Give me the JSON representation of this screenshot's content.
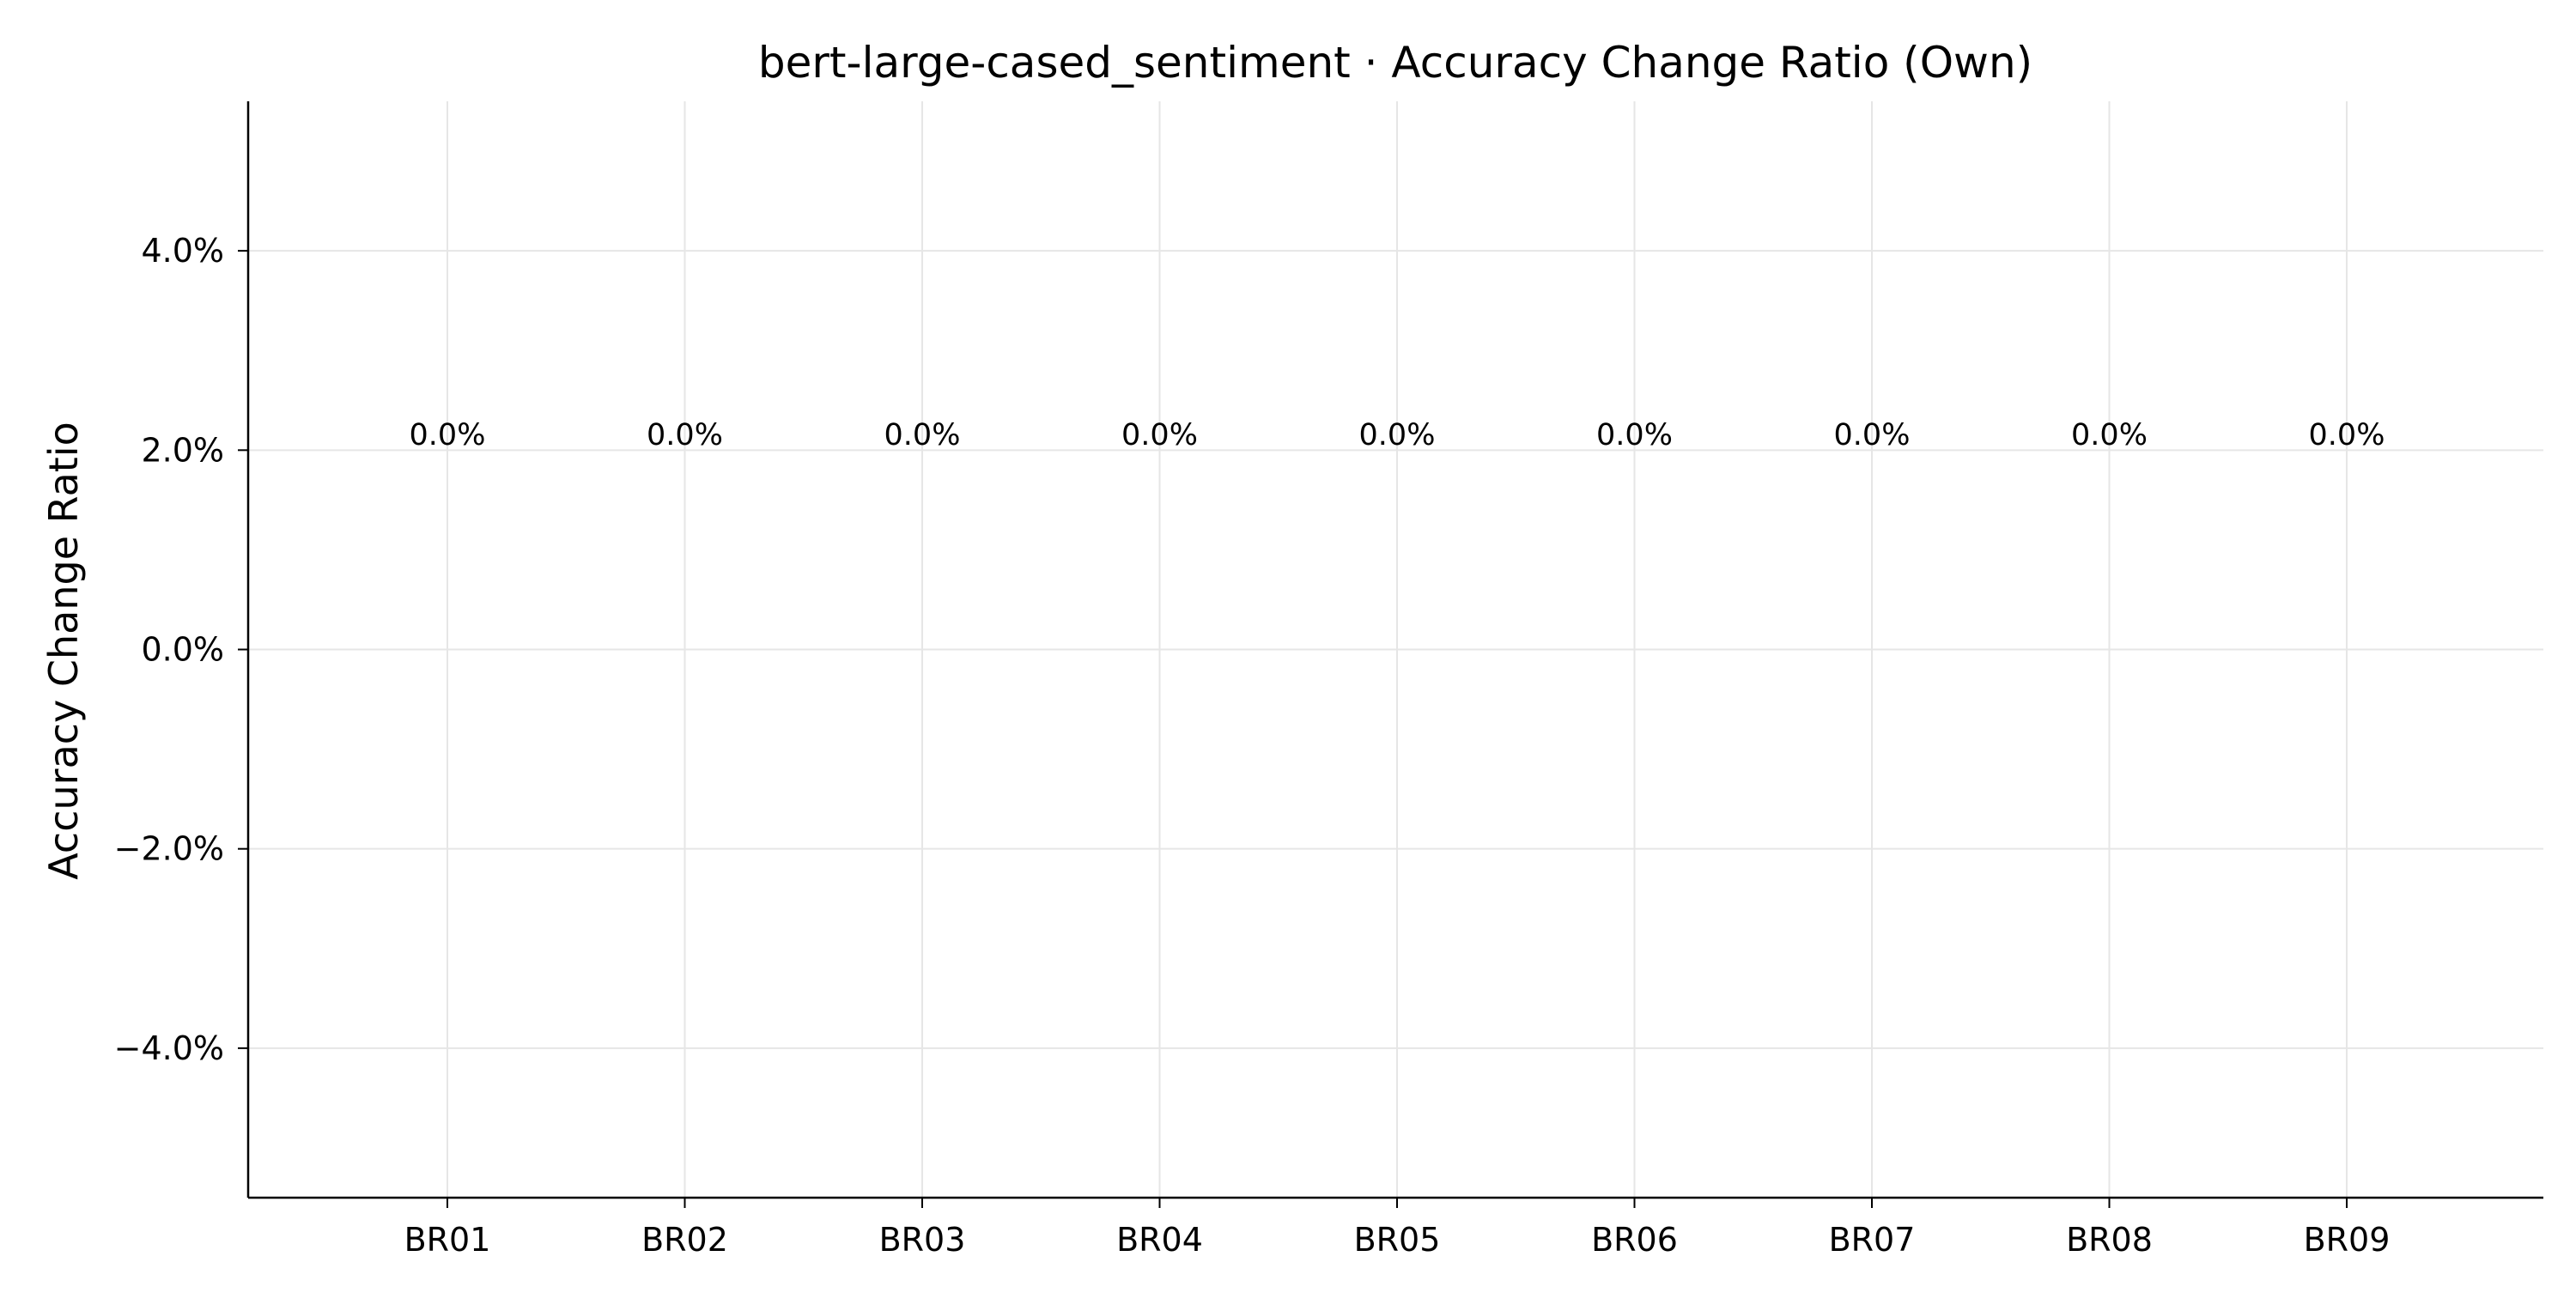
{
  "chart_data": {
    "type": "bar",
    "title": "bert-large-cased_sentiment · Accuracy Change Ratio (Own)",
    "xlabel": "",
    "ylabel": "Accuracy Change Ratio",
    "categories": [
      "BR01",
      "BR02",
      "BR03",
      "BR04",
      "BR05",
      "BR06",
      "BR07",
      "BR08",
      "BR09"
    ],
    "values": [
      0.0,
      0.0,
      0.0,
      0.0,
      0.0,
      0.0,
      0.0,
      0.0,
      0.0
    ],
    "data_labels": [
      "0.0%",
      "0.0%",
      "0.0%",
      "0.0%",
      "0.0%",
      "0.0%",
      "0.0%",
      "0.0%",
      "0.0%"
    ],
    "ylim": [
      -5.5,
      5.5
    ],
    "yticks": [
      -4.0,
      -2.0,
      0.0,
      2.0,
      4.0
    ],
    "ytick_labels": [
      "−4.0%",
      "−2.0%",
      "0.0%",
      "2.0%",
      "4.0%"
    ],
    "y_unit": "%",
    "grid": true,
    "legend": "none",
    "colors": {
      "grid": "#e6e6e6",
      "axis": "#000000",
      "bar": "#4c72b0"
    }
  }
}
